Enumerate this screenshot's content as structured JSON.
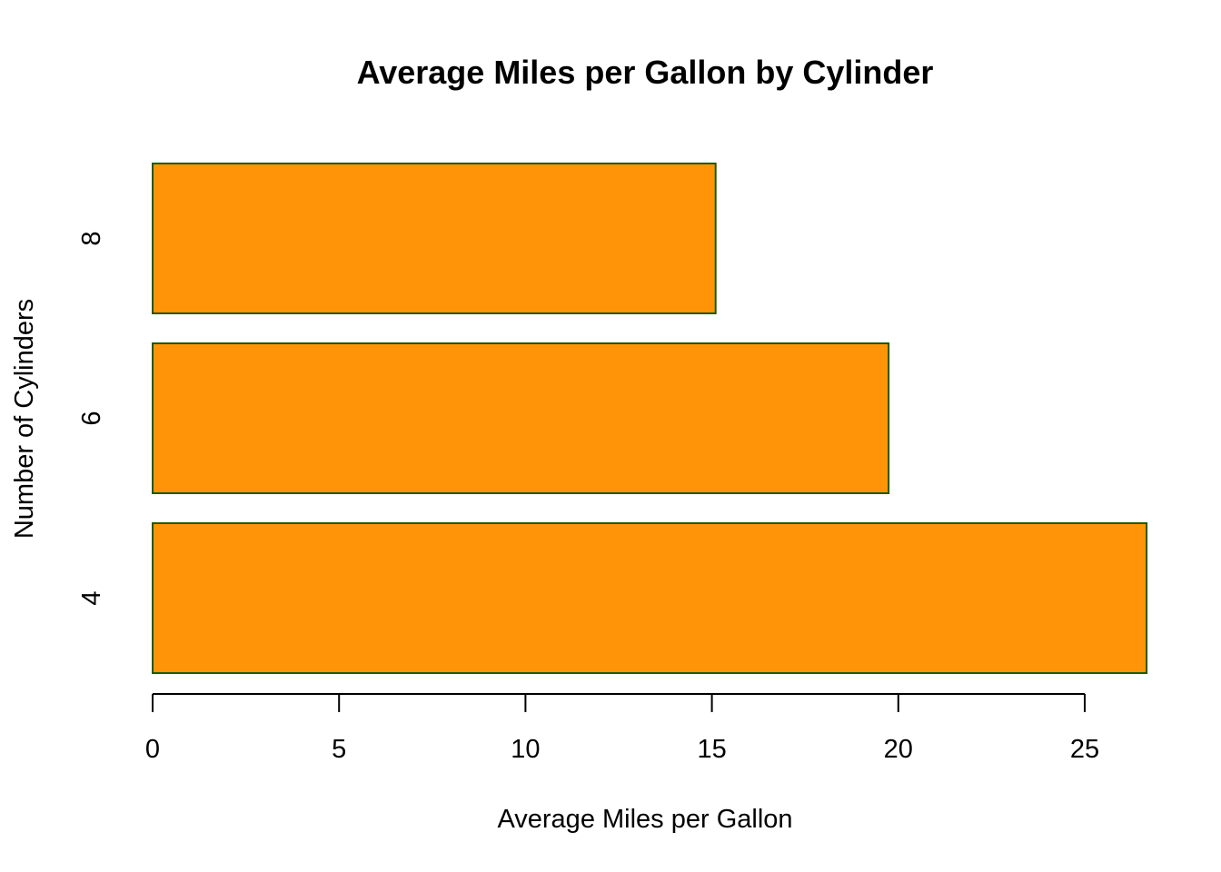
{
  "chart_data": {
    "type": "bar",
    "orientation": "horizontal",
    "title": "Average Miles per Gallon by Cylinder",
    "xlabel": "Average Miles per Gallon",
    "ylabel": "Number of Cylinders",
    "categories": [
      "4",
      "6",
      "8"
    ],
    "values": [
      26.66,
      19.74,
      15.1
    ],
    "x_ticks": [
      0,
      5,
      10,
      15,
      20,
      25
    ],
    "xlim": [
      0,
      25
    ],
    "grid": false,
    "legend": "none",
    "bar_fill": "#ff9409",
    "bar_border": "#1a5c00"
  }
}
